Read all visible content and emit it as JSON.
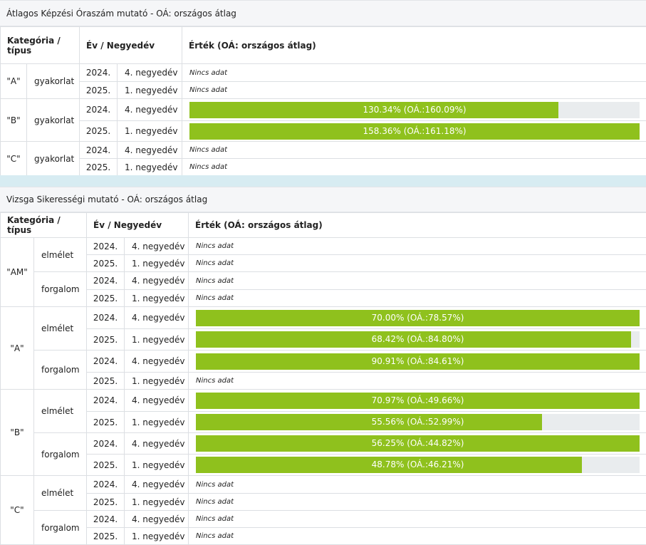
{
  "section1": {
    "title": "Átlagos Képzési Óraszám mutató - OÁ: országos átlag",
    "headers": {
      "category": "Kategória / típus",
      "period": "Év / Negyedév",
      "value": "Érték (OÁ: országos átlag)"
    },
    "rows": [
      {
        "cat": "\"A\"",
        "type": "gyakorlat",
        "year": "2024.",
        "quarter": "4. negyedév",
        "value_text": "Nincs adat"
      },
      {
        "year": "2025.",
        "quarter": "1. negyedév",
        "value_text": "Nincs adat"
      },
      {
        "cat": "\"B\"",
        "type": "gyakorlat",
        "year": "2024.",
        "quarter": "4. negyedév",
        "value_text": "130.34% (OÁ.:160.09%)",
        "bar_fraction": 0.82
      },
      {
        "year": "2025.",
        "quarter": "1. negyedév",
        "value_text": "158.36% (OÁ.:161.18%)",
        "bar_fraction": 1.0
      },
      {
        "cat": "\"C\"",
        "type": "gyakorlat",
        "year": "2024.",
        "quarter": "4. negyedév",
        "value_text": "Nincs adat"
      },
      {
        "year": "2025.",
        "quarter": "1. negyedév",
        "value_text": "Nincs adat"
      }
    ]
  },
  "section2": {
    "title": "Vizsga Sikerességi mutató - OÁ: országos átlag",
    "headers": {
      "category": "Kategória / típus",
      "period": "Év / Negyedév",
      "value": "Érték (OÁ: országos átlag)"
    },
    "groups": [
      {
        "cat": "\"AM\"",
        "types": [
          {
            "type": "elmélet",
            "rows": [
              {
                "year": "2024.",
                "quarter": "4. negyedév",
                "value_text": "Nincs adat"
              },
              {
                "year": "2025.",
                "quarter": "1. negyedév",
                "value_text": "Nincs adat"
              }
            ]
          },
          {
            "type": "forgalom",
            "rows": [
              {
                "year": "2024.",
                "quarter": "4. negyedév",
                "value_text": "Nincs adat"
              },
              {
                "year": "2025.",
                "quarter": "1. negyedév",
                "value_text": "Nincs adat"
              }
            ]
          }
        ]
      },
      {
        "cat": "\"A\"",
        "types": [
          {
            "type": "elmélet",
            "rows": [
              {
                "year": "2024.",
                "quarter": "4. negyedév",
                "value_text": "70.00% (OÁ.:78.57%)",
                "bar_fraction": 1.0
              },
              {
                "year": "2025.",
                "quarter": "1. negyedév",
                "value_text": "68.42% (OÁ.:84.80%)",
                "bar_fraction": 0.98
              }
            ]
          },
          {
            "type": "forgalom",
            "rows": [
              {
                "year": "2024.",
                "quarter": "4. negyedév",
                "value_text": "90.91% (OÁ.:84.61%)",
                "bar_fraction": 1.0
              },
              {
                "year": "2025.",
                "quarter": "1. negyedév",
                "value_text": "Nincs adat"
              }
            ]
          }
        ]
      },
      {
        "cat": "\"B\"",
        "types": [
          {
            "type": "elmélet",
            "rows": [
              {
                "year": "2024.",
                "quarter": "4. negyedév",
                "value_text": "70.97% (OÁ.:49.66%)",
                "bar_fraction": 1.0
              },
              {
                "year": "2025.",
                "quarter": "1. negyedév",
                "value_text": "55.56% (OÁ.:52.99%)",
                "bar_fraction": 0.78
              }
            ]
          },
          {
            "type": "forgalom",
            "rows": [
              {
                "year": "2024.",
                "quarter": "4. negyedév",
                "value_text": "56.25% (OÁ.:44.82%)",
                "bar_fraction": 1.0
              },
              {
                "year": "2025.",
                "quarter": "1. negyedév",
                "value_text": "48.78% (OÁ.:46.21%)",
                "bar_fraction": 0.87
              }
            ]
          }
        ]
      },
      {
        "cat": "\"C\"",
        "types": [
          {
            "type": "elmélet",
            "rows": [
              {
                "year": "2024.",
                "quarter": "4. negyedév",
                "value_text": "Nincs adat"
              },
              {
                "year": "2025.",
                "quarter": "1. negyedév",
                "value_text": "Nincs adat"
              }
            ]
          },
          {
            "type": "forgalom",
            "rows": [
              {
                "year": "2024.",
                "quarter": "4. negyedév",
                "value_text": "Nincs adat"
              },
              {
                "year": "2025.",
                "quarter": "1. negyedév",
                "value_text": "Nincs adat"
              }
            ]
          }
        ]
      }
    ]
  },
  "colors": {
    "bar_fill": "#8fc11d",
    "bar_track": "#e9ecee",
    "separator": "#d7ecf2"
  }
}
